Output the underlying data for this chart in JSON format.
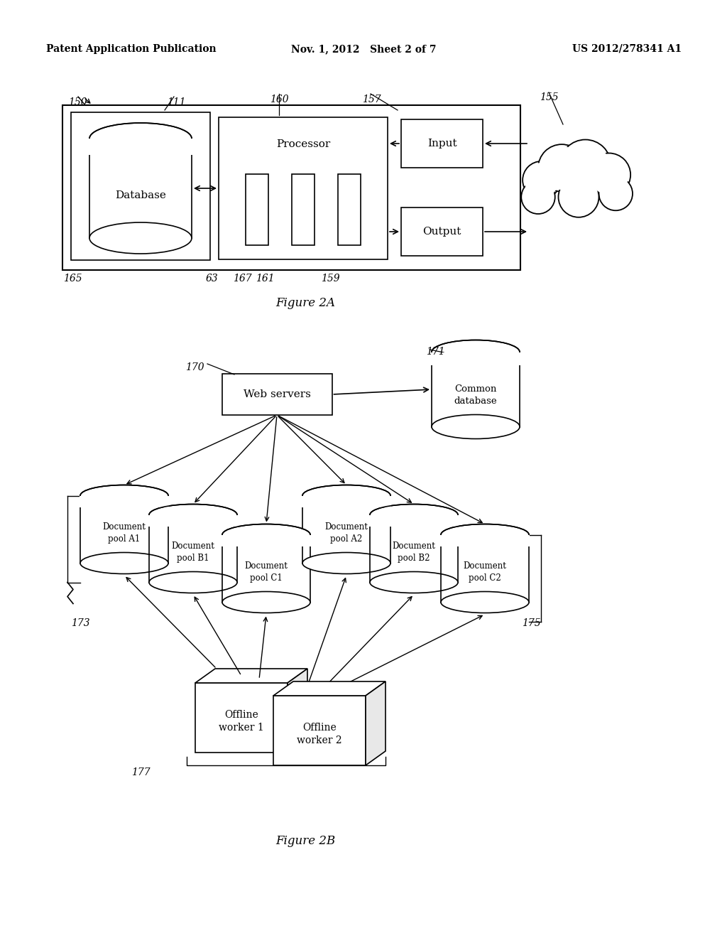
{
  "background_color": "#ffffff",
  "header_left": "Patent Application Publication",
  "header_center": "Nov. 1, 2012   Sheet 2 of 7",
  "header_right": "US 2012/278341 A1",
  "fig2a_caption": "Figure 2A",
  "fig2b_caption": "Figure 2B"
}
